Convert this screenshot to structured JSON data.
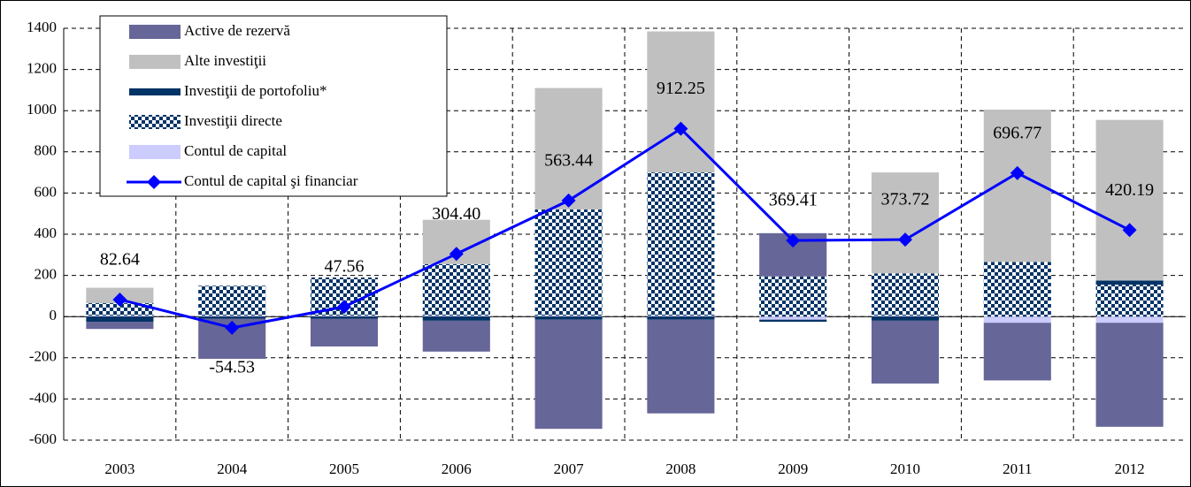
{
  "chart_data": {
    "type": "bar",
    "stacked": true,
    "categories": [
      "2003",
      "2004",
      "2005",
      "2006",
      "2007",
      "2008",
      "2009",
      "2010",
      "2011",
      "2012"
    ],
    "series": [
      {
        "name": "Contul de capital",
        "color": "#ccccff",
        "values": [
          5,
          5,
          5,
          5,
          5,
          5,
          -15,
          5,
          -30,
          -30
        ]
      },
      {
        "name": "Investiţii directe",
        "color": "#003366",
        "pattern": "checker",
        "values": [
          60,
          145,
          185,
          250,
          515,
          695,
          195,
          205,
          265,
          155
        ]
      },
      {
        "name": "Investiţii de portofoliu*",
        "color": "#003366",
        "values": [
          -25,
          -10,
          -10,
          -20,
          -15,
          -15,
          -10,
          -20,
          0,
          20
        ]
      },
      {
        "name": "Alte investiţii",
        "color": "#c0c0c0",
        "values": [
          75,
          0,
          0,
          215,
          590,
          685,
          0,
          490,
          740,
          780
        ]
      },
      {
        "name": "Active de rezervă",
        "color": "#666699",
        "values": [
          -35,
          -195,
          -135,
          -150,
          -530,
          -455,
          210,
          -305,
          -280,
          -505
        ]
      },
      {
        "name": "Contul de capital şi financiar",
        "color": "#0000ff",
        "type": "line",
        "values": [
          82.64,
          -54.53,
          47.56,
          304.4,
          563.44,
          912.25,
          369.41,
          373.72,
          696.77,
          420.19
        ],
        "value_labels": [
          "82.64",
          "-54.53",
          "47.56",
          "304.40",
          "563.44",
          "912.25",
          "369.41",
          "373.72",
          "696.77",
          "420.19"
        ]
      }
    ],
    "legend_order": [
      4,
      3,
      2,
      1,
      0,
      5
    ],
    "ylim": [
      -600,
      1400
    ],
    "yticks": [
      -600,
      -400,
      -200,
      0,
      200,
      400,
      600,
      800,
      1000,
      1200,
      1400
    ],
    "grid": true
  }
}
